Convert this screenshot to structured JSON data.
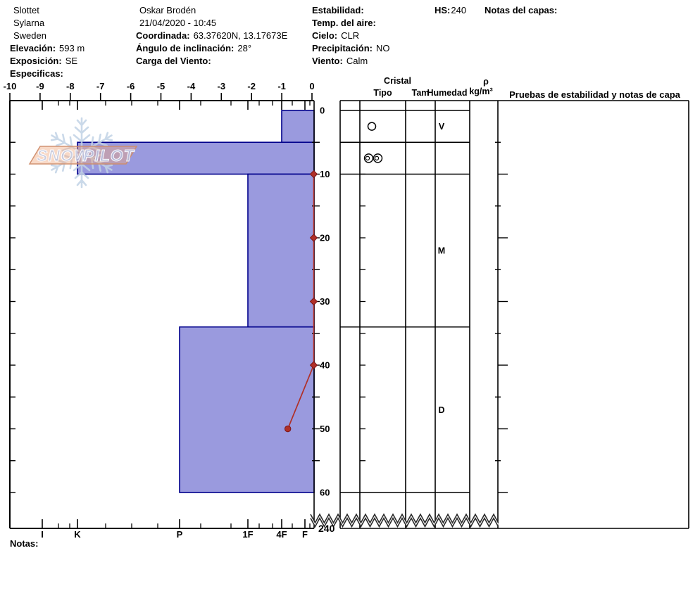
{
  "title_block": {
    "col1": [
      {
        "label": "",
        "value": "Slottet"
      },
      {
        "label": "",
        "value": "Sylarna"
      },
      {
        "label": "",
        "value": "Sweden"
      },
      {
        "label": "Elevación:",
        "value": "593 m"
      },
      {
        "label": "Exposición:",
        "value": "SE"
      },
      {
        "label": "Especificas:",
        "value": ""
      }
    ],
    "col2": [
      {
        "label": "",
        "value": "Oskar Brodén"
      },
      {
        "label": "",
        "value": "21/04/2020 - 10:45"
      },
      {
        "label": "Coordinada:",
        "value": "63.37620N, 13.17673E"
      },
      {
        "label": "Ángulo de inclinación:",
        "value": "28°"
      },
      {
        "label": "Carga del Viento:",
        "value": ""
      }
    ],
    "col3": [
      {
        "label": "Estabilidad:",
        "value": ""
      },
      {
        "label": "Temp. del aire:",
        "value": ""
      },
      {
        "label": "Cielo:",
        "value": "CLR"
      },
      {
        "label": "Precipitación:",
        "value": "NO"
      },
      {
        "label": "Viento:",
        "value": "Calm"
      }
    ],
    "hs": {
      "label": "HS:",
      "value": "240"
    },
    "layer_notes_label": "Notas del capas:"
  },
  "logo": {
    "word1": "SNOW",
    "word2": "PILOT"
  },
  "chart_data": {
    "type": "snow-profile",
    "temperature_axis": {
      "position": "top",
      "unit": "°C",
      "min": -10,
      "max": 0,
      "label_values": [
        -10,
        -9,
        -8,
        -7,
        -6,
        -5,
        -4,
        -3,
        -2,
        -1,
        0
      ]
    },
    "hardness_axis": {
      "position": "bottom",
      "labels": [
        "I",
        "K",
        "P",
        "1F",
        "4F",
        "F"
      ]
    },
    "depth_axis": {
      "unit": "cm",
      "labels": [
        0,
        10,
        20,
        30,
        40,
        50,
        60
      ],
      "minor_step": 5,
      "break_label": "240",
      "total_hs": 240
    },
    "layers": [
      {
        "top_cm": 0,
        "bottom_cm": 5,
        "hardness": "4F"
      },
      {
        "top_cm": 5,
        "bottom_cm": 10,
        "hardness": "K"
      },
      {
        "top_cm": 10,
        "bottom_cm": 34,
        "hardness": "1F"
      },
      {
        "top_cm": 34,
        "bottom_cm": 60,
        "hardness": "P"
      }
    ],
    "temperature_profile": [
      {
        "depth_cm": 10,
        "temp_c": 0
      },
      {
        "depth_cm": 20,
        "temp_c": 0
      },
      {
        "depth_cm": 30,
        "temp_c": 0
      },
      {
        "depth_cm": 40,
        "temp_c": 0
      },
      {
        "depth_cm": 50,
        "temp_c": -0.8
      }
    ]
  },
  "layer_table": {
    "crystal_header": "Cristal",
    "tipo_header": "Tipo",
    "tam_header": "Tam",
    "humedad_header": "Humedad",
    "rho_symbol": "ρ",
    "rho_unit": "kg/m³",
    "pruebas_header": "Pruebas de estabilidad y notas de capa",
    "rows": [
      {
        "top_cm": 0,
        "bottom_cm": 5,
        "crystal_symbol": "circle",
        "tam": "",
        "humedad": "V"
      },
      {
        "top_cm": 5,
        "bottom_cm": 10,
        "crystal_symbol": "double-circle",
        "tam": "",
        "humedad": ""
      },
      {
        "top_cm": 10,
        "bottom_cm": 34,
        "crystal_symbol": "",
        "tam": "",
        "humedad": "M"
      },
      {
        "top_cm": 34,
        "bottom_cm": 60,
        "crystal_symbol": "",
        "tam": "",
        "humedad": "D"
      }
    ]
  },
  "footer": {
    "notas_label": "Notas:"
  },
  "colors": {
    "layer_fill": "#9a9ade",
    "layer_border": "#00008b",
    "temp_line": "#b03028",
    "temp_marker_edge": "#7a1518",
    "grid": "#000000",
    "watermark_blue": "#c3d3e6",
    "watermark_salmon_fill": "#f0a67c",
    "watermark_salmon_edge": "#cf8d6b",
    "watermark_letter": "#b9c6e4"
  }
}
